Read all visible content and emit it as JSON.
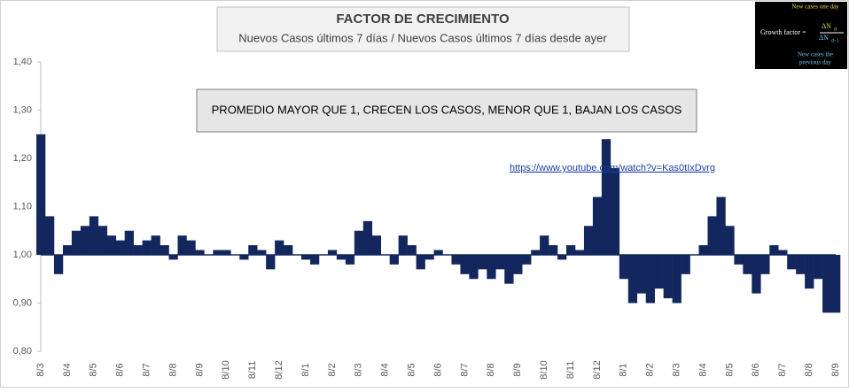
{
  "chart_data": {
    "type": "bar",
    "title": "FACTOR DE CRECIMIENTO",
    "subtitle": "Nuevos Casos últimos 7 días / Nuevos Casos últimos 7 días desde ayer",
    "annotation": "PROMEDIO MAYOR QUE 1, CRECEN LOS CASOS, MENOR QUE 1, BAJAN LOS CASOS",
    "link": "https://www.youtube.com/watch?v=Kas0tIxDvrg",
    "formula": {
      "top_note": "New cases one day",
      "label": "Growth factor =",
      "numerator": "ΔN",
      "numerator_sub": "d",
      "denominator": "ΔN",
      "denominator_sub": "d−1",
      "bottom_note_1": "New cases the",
      "bottom_note_2": "previous day"
    },
    "categories": [
      "8/3",
      null,
      null,
      "8/4",
      null,
      null,
      "8/5",
      null,
      null,
      "8/6",
      null,
      null,
      "8/7",
      null,
      null,
      "8/8",
      null,
      null,
      "8/9",
      null,
      null,
      "8/10",
      null,
      null,
      "8/11",
      null,
      null,
      "8/12",
      null,
      null,
      "8/1",
      null,
      null,
      "8/2",
      null,
      null,
      "8/3",
      null,
      null,
      "8/4",
      null,
      null,
      "8/5",
      null,
      null,
      "8/6",
      null,
      null,
      "8/7",
      null,
      null,
      "8/8",
      null,
      null,
      "8/9",
      null,
      null,
      "8/10",
      null,
      null,
      "8/11",
      null,
      null,
      "8/12",
      null,
      null,
      "8/1",
      null,
      null,
      "8/2",
      null,
      null,
      "8/3",
      null,
      null,
      "8/4",
      null,
      null,
      "8/5",
      null,
      null,
      "8/6",
      null,
      null,
      "8/7",
      null,
      null,
      "8/8",
      null,
      null,
      "8/9"
    ],
    "values": [
      1.25,
      1.08,
      0.96,
      1.02,
      1.05,
      1.06,
      1.08,
      1.06,
      1.04,
      1.03,
      1.05,
      1.02,
      1.03,
      1.04,
      1.02,
      0.99,
      1.04,
      1.03,
      1.01,
      1.0,
      1.01,
      1.01,
      1.0,
      0.99,
      1.02,
      1.01,
      0.97,
      1.03,
      1.02,
      1.0,
      0.99,
      0.98,
      1.0,
      1.01,
      0.99,
      0.98,
      1.05,
      1.07,
      1.04,
      1.0,
      0.98,
      1.04,
      1.02,
      0.97,
      0.99,
      1.01,
      1.0,
      0.98,
      0.96,
      0.95,
      0.97,
      0.95,
      0.97,
      0.94,
      0.96,
      0.98,
      1.01,
      1.04,
      1.02,
      0.99,
      1.02,
      1.01,
      1.06,
      1.12,
      1.24,
      1.18,
      0.95,
      0.9,
      0.92,
      0.9,
      0.93,
      0.91,
      0.9,
      0.96,
      1.0,
      1.02,
      1.08,
      1.12,
      1.06,
      0.98,
      0.96,
      0.92,
      0.96,
      1.02,
      1.01,
      0.97,
      0.96,
      0.93,
      0.95,
      0.88,
      0.88
    ],
    "color": "#13275e",
    "baseline": 1,
    "ylim": [
      0.8,
      1.4
    ],
    "yticks": [
      {
        "value": 0.8,
        "label": "0,80"
      },
      {
        "value": 0.9,
        "label": "0,90"
      },
      {
        "value": 1.0,
        "label": "1,00"
      },
      {
        "value": 1.1,
        "label": "1,10"
      },
      {
        "value": 1.2,
        "label": "1,20"
      },
      {
        "value": 1.3,
        "label": "1,30"
      },
      {
        "value": 1.4,
        "label": "1,40"
      }
    ],
    "grid": false
  }
}
